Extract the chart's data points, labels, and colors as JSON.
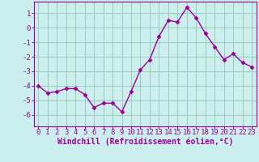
{
  "x": [
    0,
    1,
    2,
    3,
    4,
    5,
    6,
    7,
    8,
    9,
    10,
    11,
    12,
    13,
    14,
    15,
    16,
    17,
    18,
    19,
    20,
    21,
    22,
    23
  ],
  "y": [
    -4.0,
    -4.5,
    -4.4,
    -4.2,
    -4.2,
    -4.6,
    -5.5,
    -5.2,
    -5.2,
    -5.8,
    -4.4,
    -2.9,
    -2.2,
    -0.6,
    0.5,
    0.4,
    1.4,
    0.7,
    -0.4,
    -1.3,
    -2.2,
    -1.8,
    -2.4,
    -2.7
  ],
  "line_color": "#990099",
  "marker": "D",
  "marker_size": 2.5,
  "bg_color": "#cceeee",
  "grid_color": "#99ccbb",
  "xlabel": "Windchill (Refroidissement éolien,°C)",
  "xlabel_fontsize": 7,
  "tick_fontsize": 6.5,
  "xlim": [
    -0.5,
    23.5
  ],
  "ylim": [
    -6.8,
    1.8
  ],
  "yticks": [
    1,
    0,
    -1,
    -2,
    -3,
    -4,
    -5,
    -6
  ],
  "xticks": [
    0,
    1,
    2,
    3,
    4,
    5,
    6,
    7,
    8,
    9,
    10,
    11,
    12,
    13,
    14,
    15,
    16,
    17,
    18,
    19,
    20,
    21,
    22,
    23
  ],
  "line_width": 1.0
}
